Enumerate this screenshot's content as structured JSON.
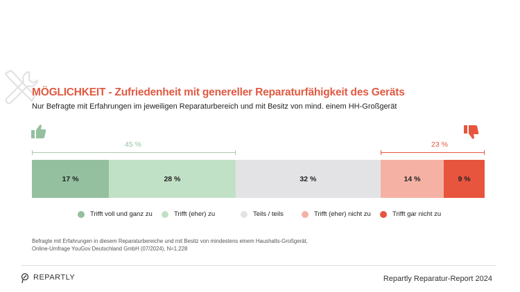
{
  "chart_data": {
    "type": "bar",
    "orientation": "horizontal-stacked",
    "title": "MÖGLICHKEIT - Zufriedenheit mit genereller Reparaturfähigkeit des Geräts",
    "subtitle": "Nur Befragte mit Erfahrungen im jeweiligen Reparaturbereich und mit Besitz von mind. einem HH-Großgerät",
    "series": [
      {
        "name": "Trifft voll und ganz zu",
        "value": 17,
        "label": "17 %",
        "color": "#94c09f"
      },
      {
        "name": "Trifft (eher) zu",
        "value": 28,
        "label": "28 %",
        "color": "#c1e1c6"
      },
      {
        "name": "Teils / teils",
        "value": 32,
        "label": "32 %",
        "color": "#e3e3e6"
      },
      {
        "name": "Trifft (eher) nicht zu",
        "value": 14,
        "label": "14 %",
        "color": "#f5b2a4"
      },
      {
        "name": "Trifft gar nicht zu",
        "value": 9,
        "label": "9 %",
        "color": "#e8553e"
      }
    ],
    "positive_total": {
      "label": "45 %",
      "value": 45,
      "color": "#94c09f"
    },
    "negative_total": {
      "label": "23 %",
      "value": 23,
      "color": "#e8553e"
    },
    "legend_position": "bottom",
    "grid": false
  },
  "note": {
    "line1": "Befragte mit Erfahrungen in diesem Reparaturbereiche und mit Besitz von mindestens einem Haushalts-Großgerät,",
    "line2": "Online-Umfrage YouGov Deutschland GmbH (07/2024), N=1.228"
  },
  "footer": {
    "brand": "REPARTLY",
    "report": "Repartly Reparatur-Report 2024"
  },
  "icons": {
    "header": "wrench-screwdriver-icon",
    "positive": "thumbs-up-icon",
    "negative": "thumbs-down-icon",
    "brand": "repartly-logo-icon"
  }
}
